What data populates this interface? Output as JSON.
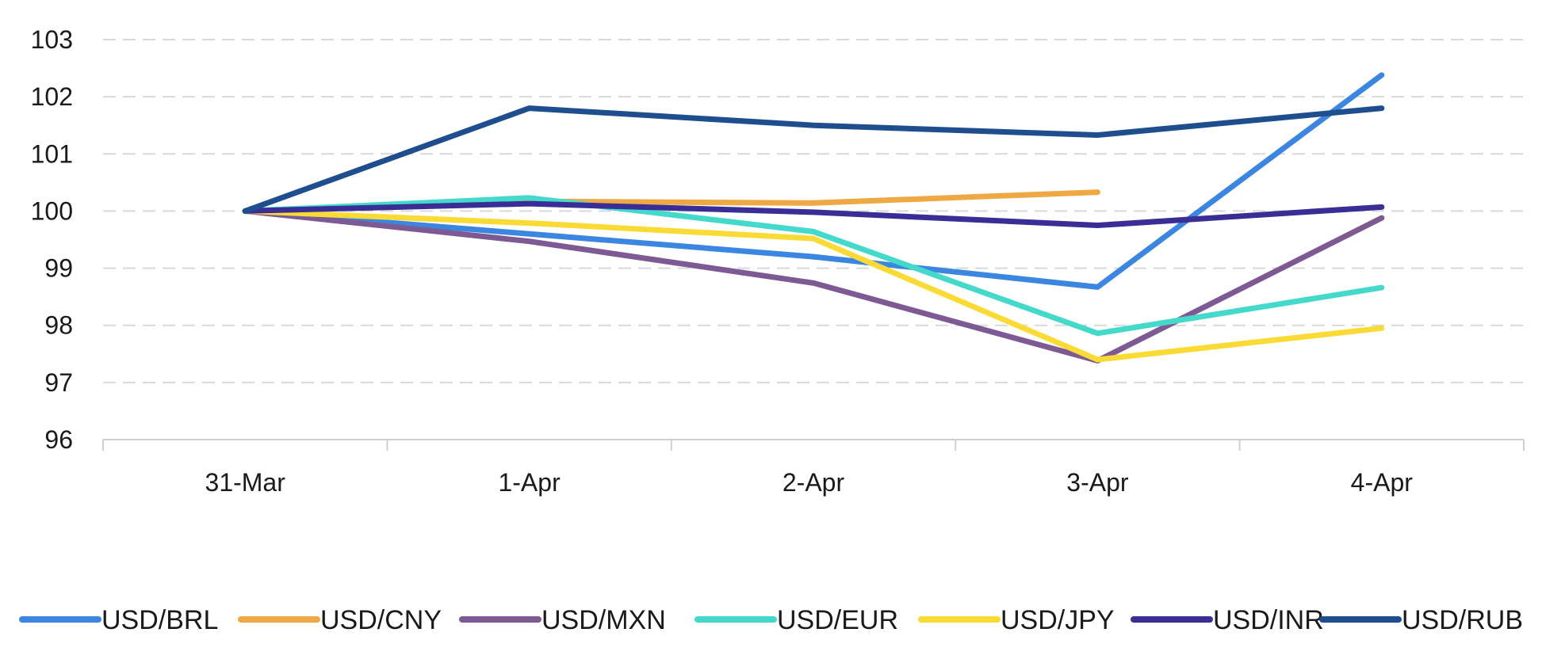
{
  "chart_data": {
    "type": "line",
    "categories": [
      "31-Mar",
      "1-Apr",
      "2-Apr",
      "3-Apr",
      "4-Apr"
    ],
    "ylim": [
      96,
      103
    ],
    "yticks": [
      96,
      97,
      98,
      99,
      100,
      101,
      102,
      103
    ],
    "grid": true,
    "legend_position": "bottom",
    "series": [
      {
        "name": "USD/BRL",
        "color": "#3B86E0",
        "values": [
          100,
          99.6,
          99.2,
          98.67,
          102.38
        ]
      },
      {
        "name": "USD/CNY",
        "color": "#EFA944",
        "values": [
          100,
          100.17,
          100.14,
          100.33,
          null
        ]
      },
      {
        "name": "USD/MXN",
        "color": "#7E5A94",
        "values": [
          100,
          99.47,
          98.74,
          97.38,
          99.88
        ]
      },
      {
        "name": "USD/EUR",
        "color": "#45D9CC",
        "values": [
          100,
          100.23,
          99.64,
          97.86,
          98.66
        ]
      },
      {
        "name": "USD/JPY",
        "color": "#FADB36",
        "values": [
          100,
          99.79,
          99.52,
          97.4,
          97.95
        ]
      },
      {
        "name": "USD/INR",
        "color": "#3A2E96",
        "values": [
          100,
          100.13,
          99.98,
          99.75,
          100.07
        ]
      },
      {
        "name": "USD/RUB",
        "color": "#1F4E8F",
        "values": [
          100,
          101.8,
          101.5,
          101.33,
          101.8
        ]
      }
    ]
  }
}
